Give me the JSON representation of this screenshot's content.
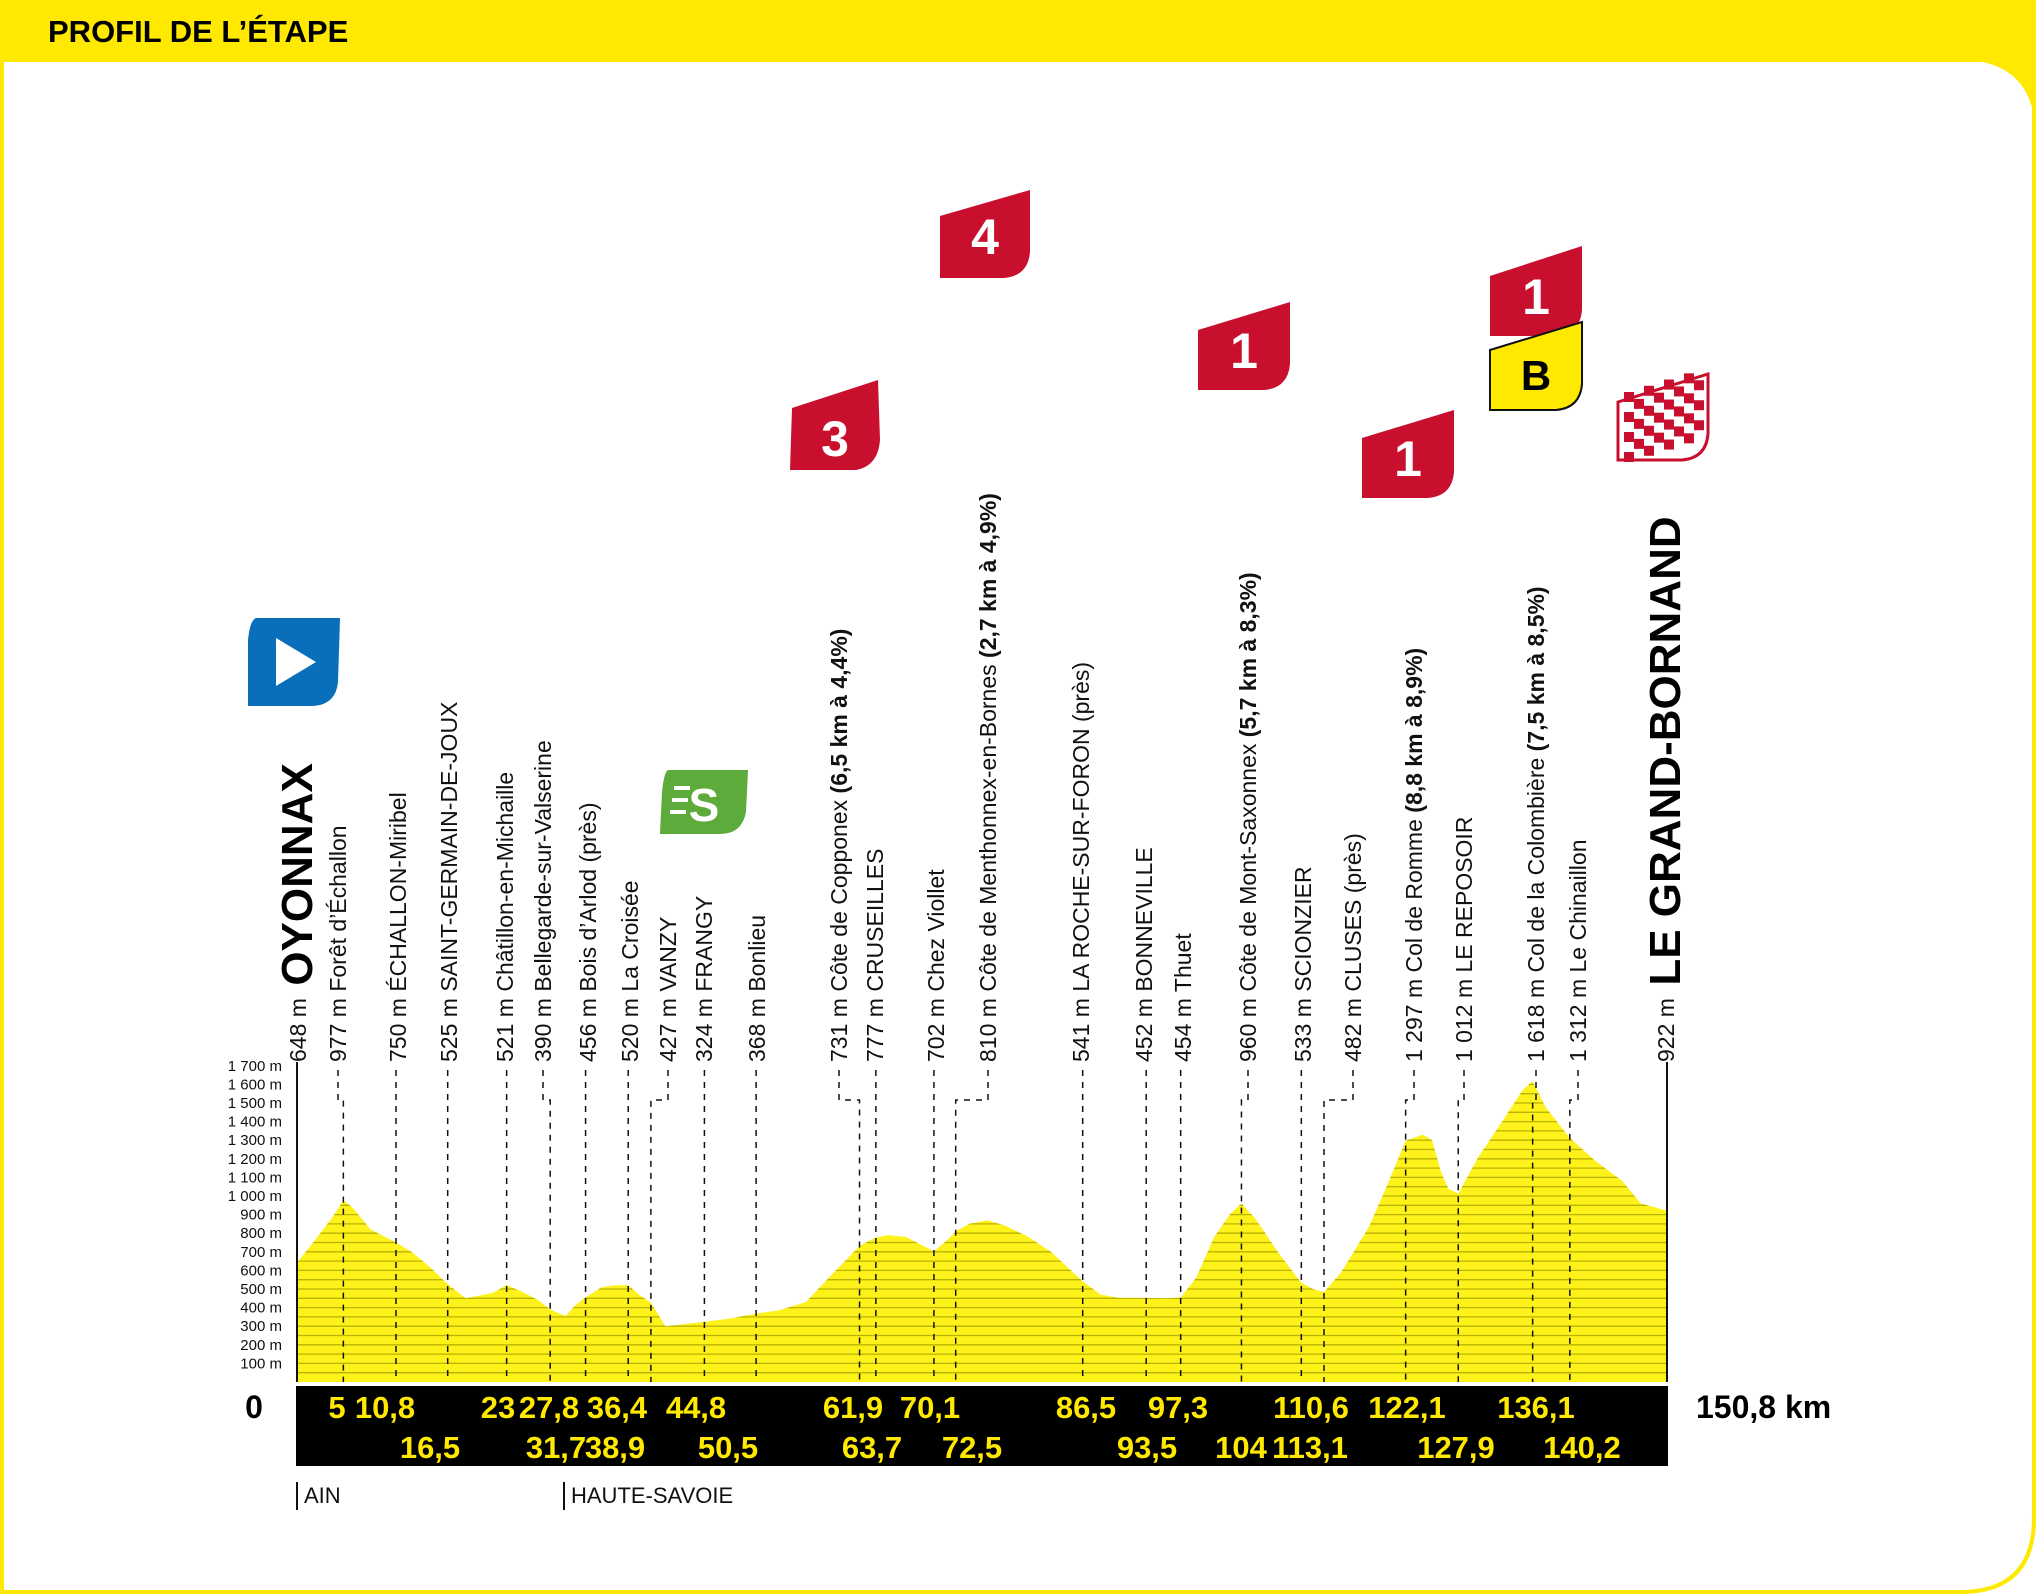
{
  "header": {
    "title": "PROFIL DE L’ÉTAPE"
  },
  "colors": {
    "frame": "#ffe900",
    "profile_fill": "#fff11a",
    "profile_lines": "#b9b400",
    "km_band": "#000000",
    "km_text": "#ffe900",
    "climb_badge": "#c8102e",
    "bonus_badge": "#ffe900",
    "sprint_badge": "#5dab3a",
    "start_badge": "#0a6fba"
  },
  "chart_data": {
    "type": "area",
    "title": "PROFIL DE L’ÉTAPE",
    "xlabel": "",
    "ylabel": "",
    "x_unit": "km",
    "xlim": [
      0,
      150.8
    ],
    "ylim": [
      0,
      1700
    ],
    "y_ticks": [
      "100 m",
      "200 m",
      "300 m",
      "400 m",
      "500 m",
      "600 m",
      "700 m",
      "800 m",
      "900 m",
      "1 000 m",
      "1 100 m",
      "1 200 m",
      "1 300 m",
      "1 400 m",
      "1 500 m",
      "1 600 m",
      "1 700 m"
    ],
    "series": [
      {
        "points": [
          [
            0,
            648
          ],
          [
            2,
            770
          ],
          [
            4,
            900
          ],
          [
            5,
            977
          ],
          [
            6,
            940
          ],
          [
            8,
            820
          ],
          [
            10.8,
            750
          ],
          [
            12.5,
            700
          ],
          [
            14.5,
            620
          ],
          [
            16.5,
            525
          ],
          [
            18.5,
            450
          ],
          [
            20.5,
            470
          ],
          [
            21.5,
            480
          ],
          [
            23,
            521
          ],
          [
            24.5,
            490
          ],
          [
            26.5,
            440
          ],
          [
            27.8,
            390
          ],
          [
            29.5,
            355
          ],
          [
            30.5,
            410
          ],
          [
            31.7,
            456
          ],
          [
            33.5,
            510
          ],
          [
            35,
            520
          ],
          [
            36.4,
            520
          ],
          [
            37.6,
            470
          ],
          [
            38.9,
            427
          ],
          [
            40.5,
            300
          ],
          [
            42.5,
            310
          ],
          [
            44.8,
            324
          ],
          [
            47.5,
            340
          ],
          [
            50.5,
            368
          ],
          [
            53,
            385
          ],
          [
            56,
            430
          ],
          [
            58.5,
            560
          ],
          [
            61.9,
            731
          ],
          [
            63,
            760
          ],
          [
            63.7,
            777
          ],
          [
            65,
            790
          ],
          [
            67,
            780
          ],
          [
            70.1,
            702
          ],
          [
            71.5,
            760
          ],
          [
            72.5,
            810
          ],
          [
            74,
            850
          ],
          [
            76,
            870
          ],
          [
            78,
            840
          ],
          [
            80.5,
            780
          ],
          [
            83,
            700
          ],
          [
            86.5,
            541
          ],
          [
            88.5,
            470
          ],
          [
            90.5,
            452
          ],
          [
            92.5,
            452
          ],
          [
            93.5,
            452
          ],
          [
            95.5,
            450
          ],
          [
            97.3,
            454
          ],
          [
            99,
            560
          ],
          [
            101,
            780
          ],
          [
            102.7,
            900
          ],
          [
            104,
            960
          ],
          [
            105.5,
            880
          ],
          [
            108,
            700
          ],
          [
            110.6,
            533
          ],
          [
            111.9,
            500
          ],
          [
            113.1,
            482
          ],
          [
            115,
            590
          ],
          [
            118,
            830
          ],
          [
            120,
            1050
          ],
          [
            122.1,
            1297
          ],
          [
            124,
            1330
          ],
          [
            125,
            1300
          ],
          [
            126,
            1130
          ],
          [
            126.8,
            1040
          ],
          [
            127.9,
            1012
          ],
          [
            130,
            1200
          ],
          [
            133,
            1420
          ],
          [
            135,
            1570
          ],
          [
            136.1,
            1618
          ],
          [
            137.5,
            1480
          ],
          [
            140.2,
            1312
          ],
          [
            143,
            1190
          ],
          [
            146,
            1080
          ],
          [
            148,
            960
          ],
          [
            150.8,
            922
          ]
        ]
      }
    ],
    "waypoints": [
      {
        "km": 0,
        "alt": "648 m",
        "name": "OYONNAX",
        "style": "town"
      },
      {
        "km": 5,
        "alt": "977 m",
        "name": "Forêt d’Échallon",
        "style": "plain"
      },
      {
        "km": 10.8,
        "alt": "750 m",
        "name": "ÉCHALLON-Miribel",
        "style": "plain"
      },
      {
        "km": 16.5,
        "alt": "525 m",
        "name": "SAINT-GERMAIN-DE-JOUX",
        "style": "plain"
      },
      {
        "km": 23,
        "alt": "521 m",
        "name": "Châtillon-en-Michaille",
        "style": "plain"
      },
      {
        "km": 27.8,
        "alt": "390 m",
        "name": "Bellegarde-sur-Valserine",
        "style": "plain"
      },
      {
        "km": 31.7,
        "alt": "456 m",
        "name": "Bois d’Arlod (près)",
        "style": "plain"
      },
      {
        "km": 36.4,
        "alt": "520 m",
        "name": "La Croisée",
        "style": "plain"
      },
      {
        "km": 38.9,
        "alt": "427 m",
        "name": "VANZY",
        "style": "plain"
      },
      {
        "km": 44.8,
        "alt": "324 m",
        "name": "FRANGY",
        "style": "plain"
      },
      {
        "km": 50.5,
        "alt": "368 m",
        "name": "Bonlieu",
        "style": "plain"
      },
      {
        "km": 61.9,
        "alt": "731 m",
        "name": "Côte de Copponex",
        "detail": "(6,5 km à 4,4%)",
        "style": "climb"
      },
      {
        "km": 63.7,
        "alt": "777 m",
        "name": "CRUSEILLES",
        "style": "plain"
      },
      {
        "km": 70.1,
        "alt": "702 m",
        "name": "Chez Viollet",
        "style": "plain"
      },
      {
        "km": 72.5,
        "alt": "810 m",
        "name": "Côte de Menthonnex-en-Bornes",
        "detail": "(2,7 km à 4,9%)",
        "style": "climb"
      },
      {
        "km": 86.5,
        "alt": "541 m",
        "name": "LA ROCHE-SUR-FORON (près)",
        "style": "plain"
      },
      {
        "km": 93.5,
        "alt": "452 m",
        "name": "BONNEVILLE",
        "style": "plain"
      },
      {
        "km": 97.3,
        "alt": "454 m",
        "name": "Thuet",
        "style": "plain"
      },
      {
        "km": 104,
        "alt": "960 m",
        "name": "Côte de Mont-Saxonnex",
        "detail": "(5,7 km à 8,3%)",
        "style": "climb"
      },
      {
        "km": 110.6,
        "alt": "533 m",
        "name": "SCIONZIER",
        "style": "plain"
      },
      {
        "km": 113.1,
        "alt": "482 m",
        "name": "CLUSES (près)",
        "style": "plain"
      },
      {
        "km": 122.1,
        "alt": "1 297 m",
        "name": "Col de Romme",
        "detail": "(8,8 km à 8,9%)",
        "style": "climb"
      },
      {
        "km": 127.9,
        "alt": "1 012 m",
        "name": "LE REPOSOIR",
        "style": "plain"
      },
      {
        "km": 136.1,
        "alt": "1 618 m",
        "name": "Col de la Colombière",
        "detail": "(7,5 km à 8,5%)",
        "style": "climb"
      },
      {
        "km": 140.2,
        "alt": "1 312 m",
        "name": "Le Chinaillon",
        "style": "plain"
      },
      {
        "km": 150.8,
        "alt": "922 m",
        "name": "LE GRAND-BORNAND",
        "style": "town"
      }
    ],
    "km_labels_top": [
      "0",
      "5",
      "10,8",
      "23",
      "27,8",
      "36,4",
      "44,8",
      "61,9",
      "70,1",
      "86,5",
      "97,3",
      "110,6",
      "122,1",
      "136,1"
    ],
    "km_labels_bottom": [
      "16,5",
      "31,7",
      "38,9",
      "50,5",
      "63,7",
      "72,5",
      "93,5",
      "104",
      "113,1",
      "127,9",
      "140,2"
    ],
    "distance_total": "150,8 km",
    "regions": [
      "AIN",
      "HAUTE-SAVOIE"
    ],
    "badges": [
      {
        "kind": "start",
        "km": 0,
        "icon": "start-arrow-icon"
      },
      {
        "kind": "sprint",
        "label": "S",
        "km": 38.9
      },
      {
        "kind": "climb",
        "label": "3",
        "km": 61.9
      },
      {
        "kind": "climb",
        "label": "4",
        "km": 72.5
      },
      {
        "kind": "climb",
        "label": "1",
        "km": 104
      },
      {
        "kind": "climb",
        "label": "1",
        "km": 122.1
      },
      {
        "kind": "climb",
        "label": "1",
        "km": 136.1
      },
      {
        "kind": "bonus",
        "label": "B",
        "km": 136.1
      },
      {
        "kind": "finish",
        "km": 150.8,
        "icon": "checkered-flag-icon"
      }
    ]
  }
}
